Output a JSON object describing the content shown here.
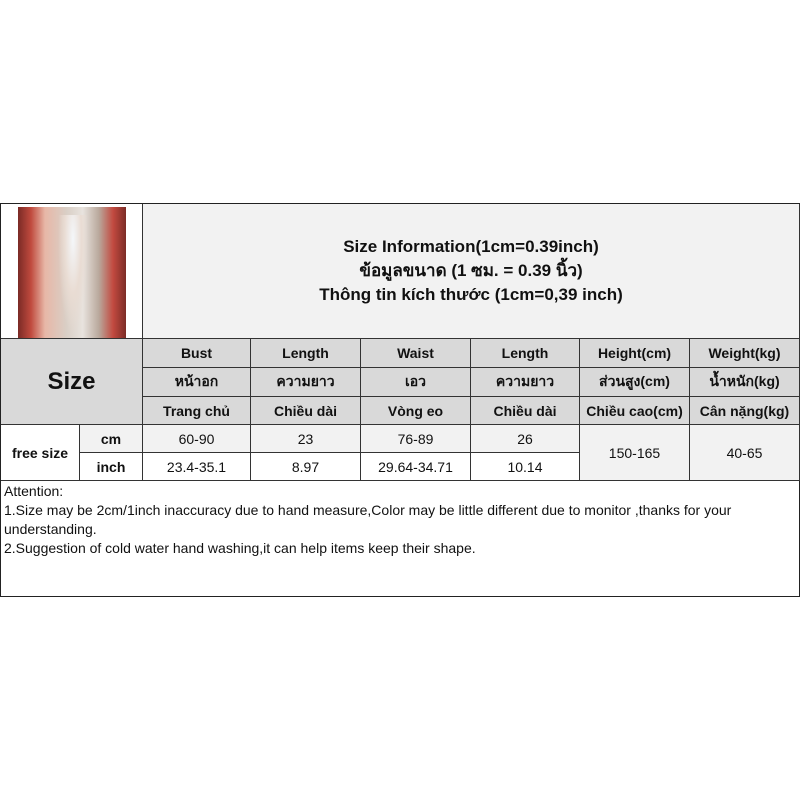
{
  "title": {
    "en": "Size Information(1cm=0.39inch)",
    "th": "ข้อมูลขนาด (1 ซม. = 0.39 นิ้ว)",
    "vi": "Thông tin kích thước (1cm=0,39 inch)"
  },
  "size_label": "Size",
  "columns": [
    {
      "en": "Bust",
      "th": "หน้าอก",
      "vi": "Trang chủ"
    },
    {
      "en": "Length",
      "th": "ความยาว",
      "vi": "Chiều dài"
    },
    {
      "en": "Waist",
      "th": "เอว",
      "vi": "Vòng eo"
    },
    {
      "en": "Length",
      "th": "ความยาว",
      "vi": "Chiều dài"
    },
    {
      "en": "Height(cm)",
      "th": "ส่วนสูง(cm)",
      "vi": "Chiều cao(cm)"
    },
    {
      "en": "Weight(kg)",
      "th": "น้ำหนัก(kg)",
      "vi": "Cân nặng(kg)"
    }
  ],
  "row_label": "free size",
  "units": [
    "cm",
    "inch"
  ],
  "cm": [
    "60-90",
    "23",
    "76-89",
    "26"
  ],
  "inch": [
    "23.4-35.1",
    "8.97",
    "29.64-34.71",
    "10.14"
  ],
  "height": "150-165",
  "weight": "40-65",
  "attention": [
    "Attention:",
    "1.Size may be 2cm/1inch inaccuracy due to hand measure,Color may be little different due to monitor ,thanks for your understanding.",
    "2.Suggestion of cold water hand washing,it can help items keep their shape."
  ]
}
